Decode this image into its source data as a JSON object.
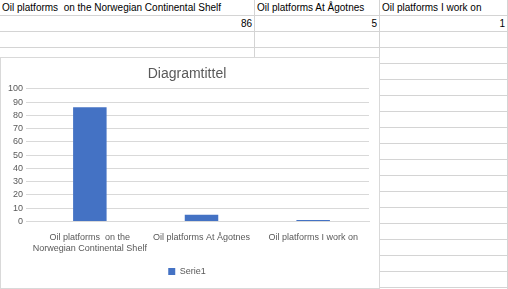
{
  "table": {
    "header": [
      "Oil platforms  on the Norwegian Continental Shelf",
      "Oil platforms At Ågotnes",
      "Oil platforms I work on"
    ],
    "rows": [
      [
        86,
        5,
        1
      ]
    ]
  },
  "chart_data": {
    "type": "bar",
    "title": "Diagramtittel",
    "categories": [
      "Oil platforms  on the Norwegian Continental Shelf",
      "Oil platforms At Ågotnes",
      "Oil platforms I work on"
    ],
    "series": [
      {
        "name": "Serie1",
        "color": "#4472c4",
        "values": [
          86,
          5,
          1
        ]
      }
    ],
    "ylim": [
      0,
      100
    ],
    "yticks": [
      0,
      10,
      20,
      30,
      40,
      50,
      60,
      70,
      80,
      90,
      100
    ],
    "grid": true,
    "legend": "bottom"
  }
}
